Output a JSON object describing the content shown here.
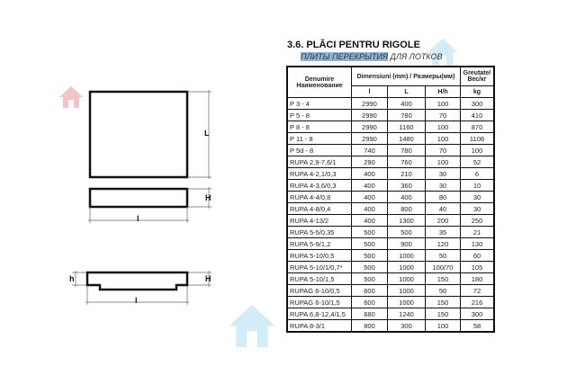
{
  "title": "3.6. PLĂCI PENTRU RIGOLE",
  "subtitle_highlight": "ПЛИТЫ ПЕРЕКРЫТИЯ",
  "subtitle_rest": " ДЛЯ ЛОТКОВ",
  "drawing": {
    "L": "L",
    "H": "H",
    "l": "l",
    "h": "h"
  },
  "table": {
    "head_name": "Denumire Наименование",
    "head_dims": "Dimensiuni (mm) / Размеры(мм)",
    "head_weight": "Greutate/ Вес/кг",
    "sub": [
      "l",
      "L",
      "H/h",
      "kg"
    ],
    "rows": [
      [
        "P 3 - 4",
        "2990",
        "400",
        "100",
        "300"
      ],
      [
        "P 5 - 8",
        "2990",
        "780",
        "70",
        "410"
      ],
      [
        "P 8 - 8",
        "2990",
        "1160",
        "100",
        "870"
      ],
      [
        "P 11 - 8",
        "2990",
        "1480",
        "100",
        "1108"
      ],
      [
        "P 5d - 8",
        "740",
        "780",
        "70",
        "100"
      ],
      [
        "RUPA 2,9-7,6/1",
        "290",
        "760",
        "100",
        "52"
      ],
      [
        "RUPA 4-2,1/0,3",
        "400",
        "210",
        "30",
        "6"
      ],
      [
        "RUPA 4-3,6/0,3",
        "400",
        "360",
        "30",
        "10"
      ],
      [
        "RUPA 4-4/0,8",
        "400",
        "400",
        "80",
        "30"
      ],
      [
        "RUPA 4-8/0,4",
        "400",
        "800",
        "40",
        "30"
      ],
      [
        "RUPA 4-13/2",
        "400",
        "1300",
        "200",
        "250"
      ],
      [
        "RUPA 5-5/0,35",
        "500",
        "500",
        "35",
        "21"
      ],
      [
        "RUPA 5-9/1,2",
        "500",
        "900",
        "120",
        "130"
      ],
      [
        "RUPA 5-10/0,5",
        "500",
        "1000",
        "50",
        "60"
      ],
      [
        "RUPA 5-10/1/0,7*",
        "500",
        "1000",
        "100/70",
        "105"
      ],
      [
        "RUPA 5-10/1,5",
        "500",
        "1000",
        "150",
        "180"
      ],
      [
        "RUPAG 6-10/0,5",
        "600",
        "1000",
        "50",
        "72"
      ],
      [
        "RUPAG 6-10/1,5",
        "600",
        "1000",
        "150",
        "216"
      ],
      [
        "RUPA 6,8-12,4/1,5",
        "680",
        "1240",
        "150",
        "300"
      ],
      [
        "RUPA 8-3/1",
        "800",
        "300",
        "100",
        "58"
      ]
    ]
  },
  "colors": {
    "watermark_red": "#f2c4c8",
    "watermark_blue": "#cfe9f5"
  }
}
